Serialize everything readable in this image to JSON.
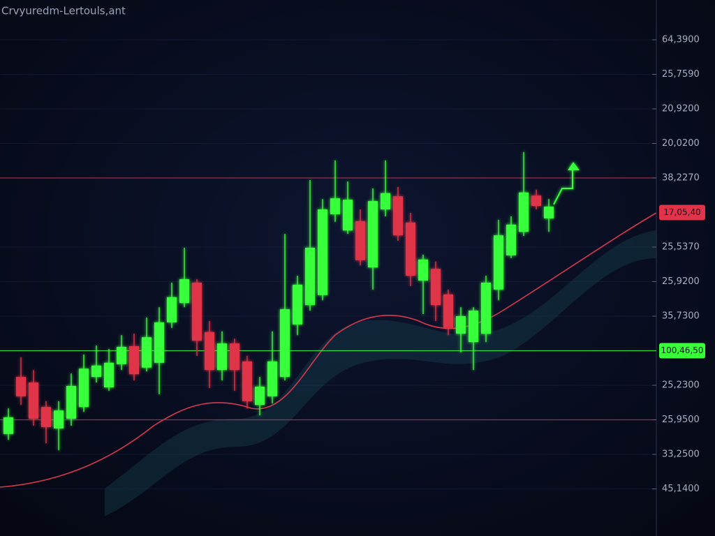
{
  "chart_data": {
    "type": "candlestick",
    "title": "Crvyuredm-Lertouls,ant",
    "ylim": [
      0,
      15
    ],
    "yticks": [
      {
        "value": 1,
        "label": "45,1400"
      },
      {
        "value": 2,
        "label": "33,2500"
      },
      {
        "value": 3,
        "label": "25,9500"
      },
      {
        "value": 4,
        "label": "25,2300"
      },
      {
        "value": 6,
        "label": "35,7300"
      },
      {
        "value": 7,
        "label": "25,9200"
      },
      {
        "value": 8,
        "label": "25,5370"
      },
      {
        "value": 10,
        "label": "38,2270"
      },
      {
        "value": 11,
        "label": "20,0200"
      },
      {
        "value": 12,
        "label": "20,9200"
      },
      {
        "value": 13,
        "label": "25,7590"
      },
      {
        "value": 14,
        "label": "64,3900"
      }
    ],
    "grid": true,
    "up_color": "#39ff3a",
    "down_color": "#e0344a",
    "open": [
      2.59,
      4.24,
      4.08,
      3.37,
      2.75,
      3.03,
      3.37,
      4.24,
      3.94,
      4.61,
      5.13,
      4.51,
      4.65,
      5.82,
      6.38,
      6.97,
      5.54,
      4.44,
      5.21,
      4.69,
      3.43,
      3.68,
      4.24,
      5.76,
      6.32,
      6.61,
      8.95,
      8.48,
      8.75,
      7.41,
      9.09,
      9.47,
      8.71,
      7.03,
      7.37,
      6.63,
      5.49,
      5.25,
      5.49,
      6.77,
      7.76,
      8.44,
      9.49,
      8.83
    ],
    "high": [
      3.33,
      4.81,
      4.44,
      3.54,
      3.54,
      4.34,
      4.89,
      5.15,
      5.05,
      5.45,
      5.49,
      5.96,
      6.26,
      6.97,
      7.98,
      7.07,
      5.86,
      5.56,
      5.35,
      4.85,
      4.24,
      5.56,
      8.38,
      7.17,
      9.94,
      9.39,
      10.51,
      9.9,
      9.09,
      9.7,
      10.51,
      9.74,
      8.99,
      7.78,
      7.58,
      6.77,
      6.26,
      6.26,
      7.17,
      8.79,
      8.89,
      10.75,
      9.66,
      9.39
    ],
    "low": [
      2.42,
      3.43,
      2.83,
      2.32,
      2.12,
      2.83,
      3.23,
      4.08,
      3.84,
      4.44,
      4.14,
      4.4,
      3.74,
      5.66,
      6.26,
      4.85,
      3.92,
      4.14,
      3.84,
      3.33,
      3.13,
      3.47,
      4.14,
      5.45,
      6.16,
      6.46,
      8.73,
      8.38,
      7.47,
      6.77,
      8.89,
      8.18,
      6.87,
      6.06,
      5.86,
      5.45,
      4.95,
      4.44,
      5.25,
      6.46,
      7.68,
      8.32,
      9.09,
      8.44
    ],
    "close": [
      3.07,
      3.68,
      3.03,
      2.79,
      3.27,
      3.98,
      4.48,
      4.57,
      4.65,
      5.11,
      4.32,
      5.39,
      5.82,
      6.55,
      7.07,
      5.29,
      4.44,
      5.21,
      4.44,
      3.54,
      3.96,
      4.69,
      6.2,
      6.91,
      7.98,
      9.09,
      9.41,
      9.37,
      7.62,
      9.33,
      9.56,
      8.34,
      7.17,
      7.64,
      6.32,
      5.66,
      6.0,
      6.16,
      6.97,
      8.34,
      8.65,
      9.58,
      9.19,
      9.17
    ],
    "reference_lines": [
      {
        "value": 10,
        "color": "#b8304c"
      },
      {
        "value": 5,
        "color": "#39ff3a"
      },
      {
        "value": 3,
        "color": "#b8304c"
      }
    ],
    "price_labels": [
      {
        "value": 9,
        "label": "17,05,40",
        "color": "#e0344a"
      },
      {
        "value": 5,
        "label": "100,46,50",
        "color": "#39ff3a"
      }
    ]
  }
}
